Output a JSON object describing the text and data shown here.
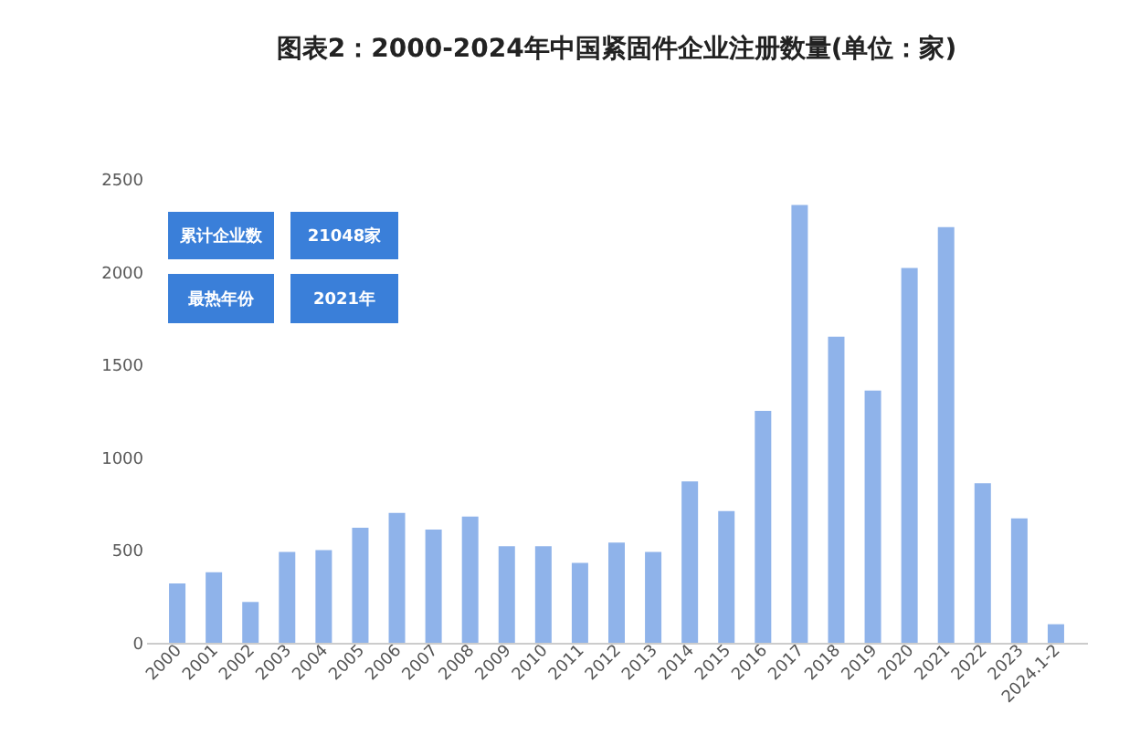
{
  "chart_data": {
    "type": "bar",
    "title": "图表2：2000-2024年中国紧固件企业注册数量(单位：家)",
    "categories": [
      "2000",
      "2001",
      "2002",
      "2003",
      "2004",
      "2005",
      "2006",
      "2007",
      "2008",
      "2009",
      "2010",
      "2011",
      "2012",
      "2013",
      "2014",
      "2015",
      "2016",
      "2017",
      "2018",
      "2019",
      "2020",
      "2021",
      "2022",
      "2023",
      "2024.1-2"
    ],
    "series": [
      {
        "color": "#8fb3ea",
        "values": [
          320,
          380,
          220,
          490,
          500,
          620,
          700,
          610,
          680,
          520,
          520,
          430,
          540,
          490,
          870,
          710,
          1250,
          2360,
          1650,
          1360,
          2020,
          2240,
          860,
          670,
          100
        ]
      }
    ],
    "ylim": [
      0,
      2500
    ],
    "yticks": [
      0,
      500,
      1000,
      1500,
      2000,
      2500
    ],
    "grid": false,
    "annotations": [
      "累计企业数",
      "21048家",
      "最热年份",
      "2021年"
    ]
  }
}
